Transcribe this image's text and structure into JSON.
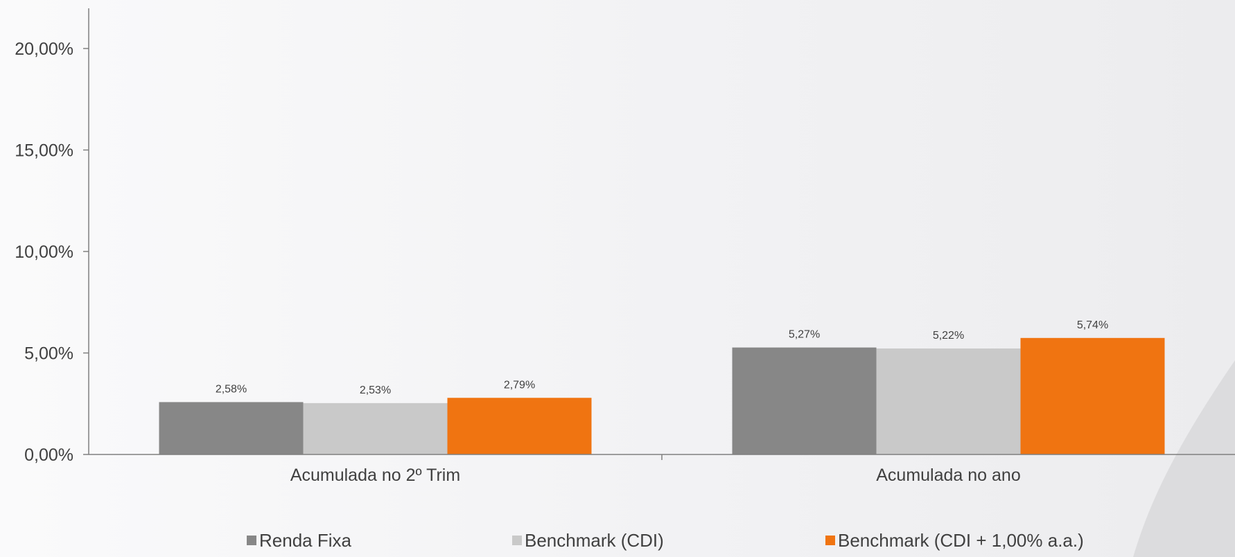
{
  "chart_data": {
    "type": "bar",
    "title": "",
    "xlabel": "",
    "ylabel": "",
    "categories": [
      "Acumulada no 2º Trim",
      "Acumulada no ano"
    ],
    "series": [
      {
        "name": "Renda Fixa",
        "values": [
          2.58,
          5.27
        ],
        "labels": [
          "2,58%",
          "5,27%"
        ],
        "color": "#878787"
      },
      {
        "name": "Benchmark (CDI)",
        "values": [
          2.53,
          5.22
        ],
        "labels": [
          "2,53%",
          "5,22%"
        ],
        "color": "#c9c9c9"
      },
      {
        "name": "Benchmark (CDI + 1,00% a.a.)",
        "values": [
          2.79,
          5.74
        ],
        "labels": [
          "2,79%",
          "5,74%"
        ],
        "color": "#f07411"
      }
    ],
    "ylim": [
      0,
      22
    ],
    "yticks": [
      0,
      5,
      10,
      15,
      20
    ],
    "ytick_labels": [
      "0,00%",
      "5,00%",
      "10,00%",
      "15,00%",
      "20,00%"
    ],
    "grid": false,
    "legend_position": "bottom"
  },
  "colors": {
    "axis": "#7f7f7f",
    "text": "#404040",
    "decor": "#dcdcde"
  }
}
